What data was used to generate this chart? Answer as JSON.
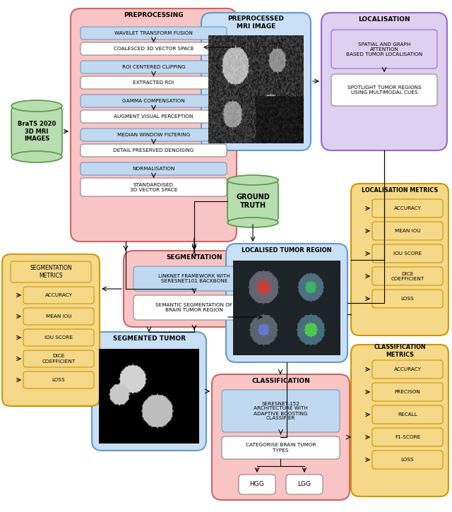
{
  "fig_width": 6.4,
  "fig_height": 7.25,
  "bg_color": "#ffffff",
  "colors": {
    "pink_bg": "#f9c4c4",
    "blue_bg": "#c8dff5",
    "purple_bg": "#ddd0f0",
    "orange_bg": "#f5d888",
    "green_cyl": "#b8ddb0",
    "light_blue_box": "#c0d8f0",
    "white_box": "#ffffff",
    "pink_inner": "#f9c4c4",
    "purple_inner": "#ddd0f0",
    "arrow_color": "#000000"
  },
  "preprocessing_title": "PREPROCESSING",
  "preprocessing_groups": [
    {
      "top": "WAVELET TRANSFORM FUSION",
      "bot": "COALESCED 3D VECTOR SPACE"
    },
    {
      "top": "ROI CENTERED CLIPPING",
      "bot": "EXTRACTED ROI"
    },
    {
      "top": "GAMMA COMPENSATION",
      "bot": "AUGMENT VISUAL PERCEPTION"
    },
    {
      "top": "MEDIAN WINDOW FILTERING",
      "bot": "DETAIL PRESERVED DENOISING"
    },
    {
      "top": "NORMALISATION",
      "bot": "STANDARDISED\n3D VECTOR SPACE"
    }
  ],
  "brats_label": "BraTS 2020\n3D MRI\nIMAGES",
  "preprocessed_mri_title": "PREPROCESSED\nMRI IMAGE",
  "localisation_title": "LOCALISATION",
  "loc_box1": "SPATIAL AND GRAPH\nATTENTION\nBASED TUMOR LOCALISATION",
  "loc_box2": "SPOTLIGHT TUMOR REGIONS\nUSING MULTIMODAL CUES",
  "ground_truth_label": "GROUND\nTRUTH",
  "segmentation_title": "SEGMENTATION",
  "seg_box1": "LINKNET FRAMEWORK WITH\nSERESNET101 BACKBONE",
  "seg_box2": "SEMANTIC SEGMENTATION OF\nBRAIN TUMOR REGION",
  "localised_tumor_title": "LOCALISED TUMOR REGION",
  "segmented_tumor_title": "SEGMENTED TUMOR",
  "classification_title": "CLASSIFICATION",
  "cl_box1": "SERESNET-152\nARCHITECTURE WITH\nADAPTIVE BOOSTING\nCLASSIFIER",
  "cl_box2": "CATEGORISE BRAIN TUMOR\nTYPES",
  "hgg": "HGG",
  "lgg": "LGG",
  "loc_metrics_title": "LOCALISATION METRICS",
  "loc_metrics": [
    "ACCURACY",
    "MEAN IOU",
    "IOU SCORE",
    "DICE\nCOEFFICIENT",
    "LOSS"
  ],
  "seg_metrics_title": "SEGMENTATION\nMETRICS",
  "seg_metrics": [
    "ACCURACY",
    "MEAN IOU",
    "IOU SCORE",
    "DICE\nCOEFFICIENT",
    "LOSS"
  ],
  "cl_metrics_title": "CLASSIFICATION\nMETRICS",
  "cl_metrics": [
    "ACCURACY",
    "PRECISON",
    "RECALL",
    "F1-SCORE",
    "LOSS"
  ]
}
